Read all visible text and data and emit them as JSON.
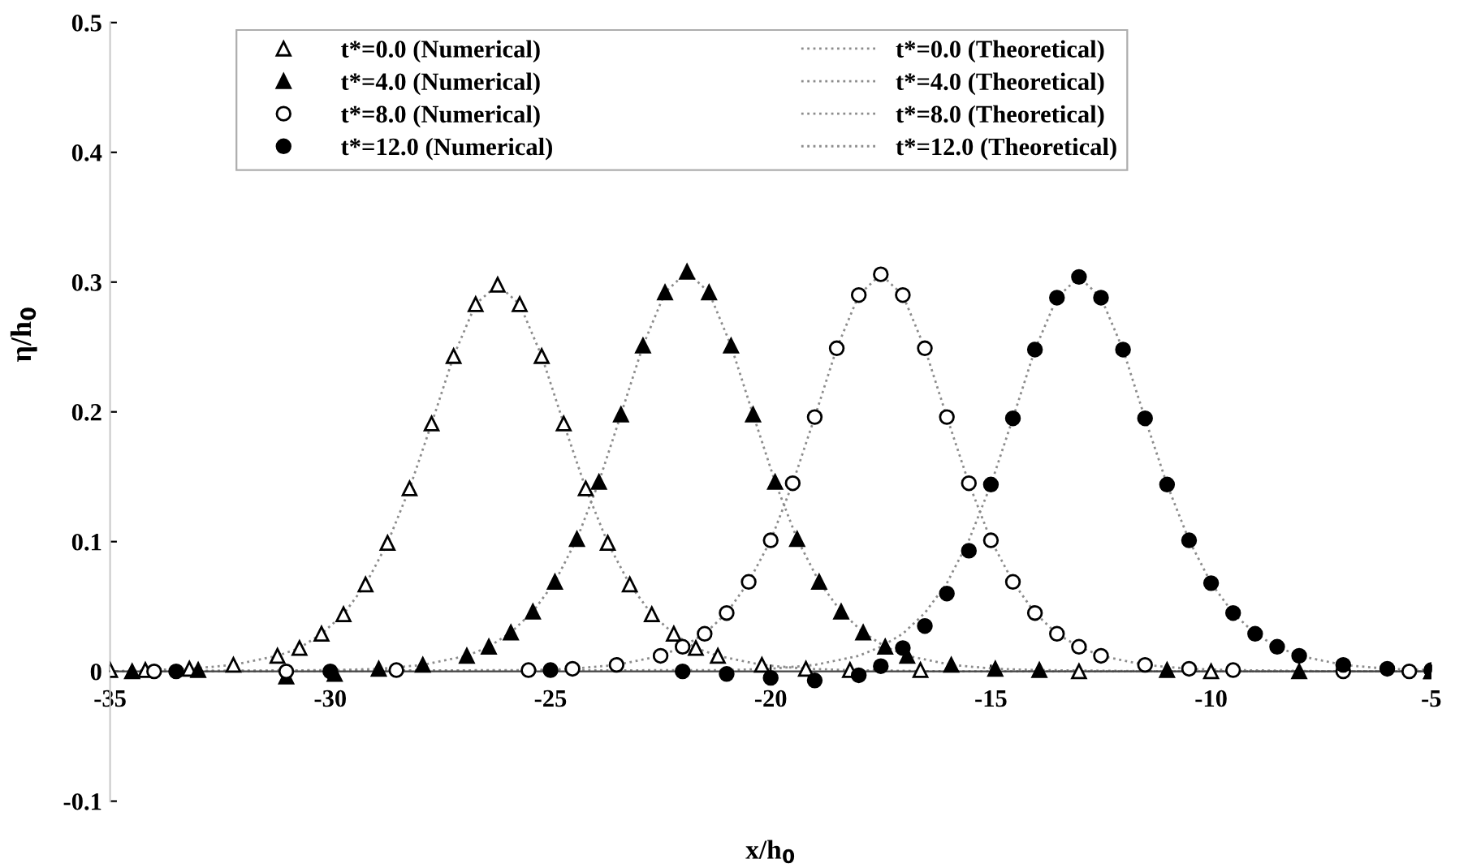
{
  "chart_data": {
    "type": "scatter",
    "xlabel": "x/h$_{0}$",
    "ylabel": "η/h$_{0}$",
    "xlim": [
      -35,
      -5
    ],
    "ylim": [
      -0.1,
      0.5
    ],
    "xticks": [
      -35,
      -30,
      -25,
      -20,
      -15,
      -10,
      -5
    ],
    "yticks": [
      -0.1,
      0,
      0.1,
      0.2,
      0.3,
      0.4,
      0.5
    ],
    "grid": false,
    "legend": "top left",
    "series": [
      {
        "name": "t*=0.0 (Numerical)",
        "marker": "triangle",
        "color": "#ffffff",
        "x": [
          -35,
          -34.2,
          -33.2,
          -32.2,
          -31.2,
          -30.7,
          -30.2,
          -29.7,
          -29.2,
          -28.7,
          -28.2,
          -27.7,
          -27.2,
          -26.7,
          -26.2,
          -25.7,
          -25.2,
          -24.7,
          -24.2,
          -23.7,
          -23.2,
          -22.7,
          -22.2,
          -21.7,
          -21.2,
          -20.2,
          -19.2,
          -18.2,
          -16.6,
          -13,
          -10,
          -5
        ],
        "values": [
          0.001,
          0.001,
          0.002,
          0.005,
          0.012,
          0.018,
          0.029,
          0.044,
          0.067,
          0.099,
          0.141,
          0.191,
          0.243,
          0.283,
          0.298,
          0.283,
          0.243,
          0.191,
          0.141,
          0.099,
          0.067,
          0.044,
          0.029,
          0.018,
          0.012,
          0.005,
          0.002,
          0.001,
          0.001,
          0,
          0,
          0
        ]
      },
      {
        "name": "t*=4.0 (Numerical)",
        "marker": "triangle",
        "color": "#000000",
        "x": [
          -34.5,
          -33,
          -31,
          -29.9,
          -28.9,
          -27.9,
          -26.9,
          -26.4,
          -25.9,
          -25.4,
          -24.9,
          -24.4,
          -23.9,
          -23.4,
          -22.9,
          -22.4,
          -21.9,
          -21.4,
          -20.9,
          -20.4,
          -19.9,
          -19.4,
          -18.9,
          -18.4,
          -17.9,
          -17.4,
          -16.9,
          -15.9,
          -14.9,
          -13.9,
          -11,
          -8,
          -5
        ],
        "values": [
          0,
          0.001,
          -0.004,
          -0.002,
          0.002,
          0.005,
          0.012,
          0.019,
          0.03,
          0.046,
          0.069,
          0.102,
          0.146,
          0.198,
          0.251,
          0.292,
          0.308,
          0.292,
          0.251,
          0.198,
          0.146,
          0.102,
          0.069,
          0.046,
          0.03,
          0.019,
          0.012,
          0.005,
          0.002,
          0.001,
          0.001,
          0,
          0
        ]
      },
      {
        "name": "t*=8.0 (Numerical)",
        "marker": "circle",
        "color": "#ffffff",
        "x": [
          -34,
          -31,
          -28.5,
          -25.5,
          -24.5,
          -23.5,
          -22.5,
          -22,
          -21.5,
          -21,
          -20.5,
          -20,
          -19.5,
          -19,
          -18.5,
          -18,
          -17.5,
          -17,
          -16.5,
          -16,
          -15.5,
          -15,
          -14.5,
          -14,
          -13.5,
          -13,
          -12.5,
          -11.5,
          -10.5,
          -9.5,
          -7,
          -5.5
        ],
        "values": [
          0,
          0,
          0.001,
          0.001,
          0.002,
          0.005,
          0.012,
          0.019,
          0.029,
          0.045,
          0.069,
          0.101,
          0.145,
          0.196,
          0.249,
          0.29,
          0.306,
          0.29,
          0.249,
          0.196,
          0.145,
          0.101,
          0.069,
          0.045,
          0.029,
          0.019,
          0.012,
          0.005,
          0.002,
          0.001,
          0,
          0
        ]
      },
      {
        "name": "t*=12.0 (Numerical)",
        "marker": "circle",
        "color": "#000000",
        "x": [
          -33.5,
          -30,
          -25,
          -22,
          -21,
          -20,
          -19,
          -18,
          -17.5,
          -17,
          -16.5,
          -16,
          -15.5,
          -15,
          -14.5,
          -14,
          -13.5,
          -13,
          -12.5,
          -12,
          -11.5,
          -11,
          -10.5,
          -10,
          -9.5,
          -9,
          -8.5,
          -8,
          -7,
          -6,
          -5
        ],
        "values": [
          0,
          0,
          0.001,
          0,
          -0.002,
          -0.005,
          -0.007,
          -0.003,
          0.004,
          0.018,
          0.035,
          0.06,
          0.093,
          0.144,
          0.195,
          0.248,
          0.288,
          0.304,
          0.288,
          0.248,
          0.195,
          0.144,
          0.101,
          0.068,
          0.045,
          0.029,
          0.019,
          0.012,
          0.005,
          0.002,
          0.001
        ]
      },
      {
        "name": "t*=0.0 (Theoretical)",
        "type": "line",
        "line_style": "dotted",
        "color": "#8c8c8c",
        "x": [
          -35,
          -34.2,
          -33.2,
          -32.2,
          -31.2,
          -30.7,
          -30.2,
          -29.7,
          -29.2,
          -28.7,
          -28.2,
          -27.7,
          -27.2,
          -26.7,
          -26.2,
          -25.7,
          -25.2,
          -24.7,
          -24.2,
          -23.7,
          -23.2,
          -22.7,
          -22.2,
          -21.7,
          -21.2,
          -20.2,
          -19.2,
          -18.2,
          -16,
          -5
        ],
        "values": [
          0,
          0.001,
          0.002,
          0.005,
          0.012,
          0.018,
          0.029,
          0.044,
          0.067,
          0.099,
          0.141,
          0.191,
          0.243,
          0.283,
          0.298,
          0.283,
          0.243,
          0.191,
          0.141,
          0.099,
          0.067,
          0.044,
          0.029,
          0.018,
          0.012,
          0.005,
          0.002,
          0.001,
          0,
          0
        ]
      },
      {
        "name": "t*=4.0 (Theoretical)",
        "type": "line",
        "line_style": "dotted",
        "color": "#8c8c8c",
        "x": [
          -35,
          -29.9,
          -28.9,
          -27.9,
          -26.9,
          -26.4,
          -25.9,
          -25.4,
          -24.9,
          -24.4,
          -23.9,
          -23.4,
          -22.9,
          -22.4,
          -21.9,
          -21.4,
          -20.9,
          -20.4,
          -19.9,
          -19.4,
          -18.9,
          -18.4,
          -17.9,
          -17.4,
          -16.9,
          -15.9,
          -14.9,
          -13.9,
          -11,
          -5
        ],
        "values": [
          0,
          0.001,
          0.002,
          0.005,
          0.012,
          0.019,
          0.03,
          0.046,
          0.069,
          0.102,
          0.146,
          0.198,
          0.251,
          0.292,
          0.308,
          0.292,
          0.251,
          0.198,
          0.146,
          0.102,
          0.069,
          0.046,
          0.03,
          0.019,
          0.012,
          0.005,
          0.002,
          0.001,
          0,
          0
        ]
      },
      {
        "name": "t*=8.0 (Theoretical)",
        "type": "line",
        "line_style": "dotted",
        "color": "#8c8c8c",
        "x": [
          -35,
          -25.5,
          -24.5,
          -23.5,
          -22.5,
          -22,
          -21.5,
          -21,
          -20.5,
          -20,
          -19.5,
          -19,
          -18.5,
          -18,
          -17.5,
          -17,
          -16.5,
          -16,
          -15.5,
          -15,
          -14.5,
          -14,
          -13.5,
          -13,
          -12.5,
          -11.5,
          -10.5,
          -9.5,
          -7,
          -5
        ],
        "values": [
          0,
          0.001,
          0.002,
          0.005,
          0.012,
          0.019,
          0.029,
          0.045,
          0.069,
          0.101,
          0.145,
          0.196,
          0.249,
          0.29,
          0.306,
          0.29,
          0.249,
          0.196,
          0.145,
          0.101,
          0.069,
          0.045,
          0.029,
          0.019,
          0.012,
          0.005,
          0.002,
          0.001,
          0,
          0
        ]
      },
      {
        "name": "t*=12.0 (Theoretical)",
        "type": "line",
        "line_style": "dotted",
        "color": "#8c8c8c",
        "x": [
          -35,
          -21,
          -20,
          -19,
          -18,
          -17.5,
          -17,
          -16.5,
          -16,
          -15.5,
          -15,
          -14.5,
          -14,
          -13.5,
          -13,
          -12.5,
          -12,
          -11.5,
          -11,
          -10.5,
          -10,
          -9.5,
          -9,
          -8.5,
          -8,
          -7,
          -6,
          -5
        ],
        "values": [
          0,
          0.001,
          0.002,
          0.005,
          0.012,
          0.019,
          0.029,
          0.045,
          0.068,
          0.101,
          0.144,
          0.195,
          0.248,
          0.288,
          0.304,
          0.288,
          0.248,
          0.195,
          0.144,
          0.101,
          0.068,
          0.045,
          0.029,
          0.019,
          0.012,
          0.005,
          0.002,
          0.001
        ]
      }
    ]
  }
}
